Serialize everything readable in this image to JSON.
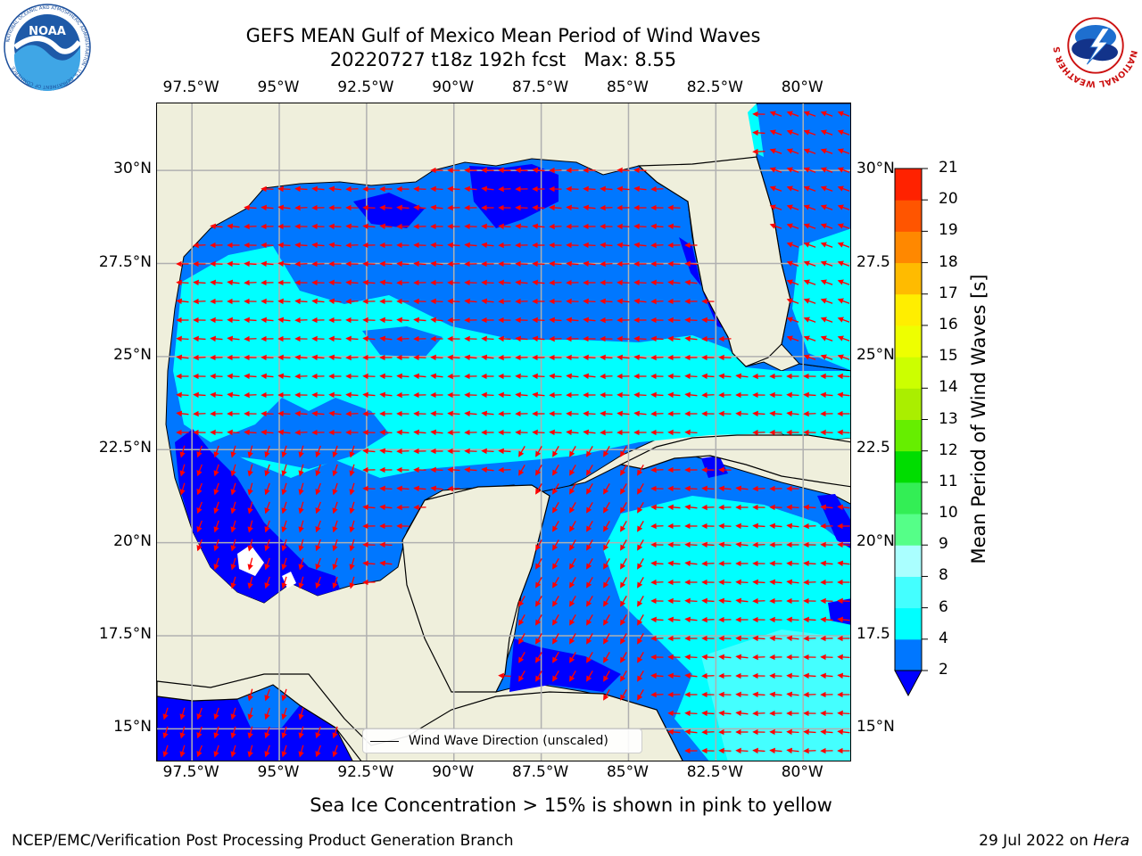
{
  "header": {
    "title_line1": "GEFS MEAN Gulf of Mexico Mean Period of Wind Waves",
    "title_line2": "20220727 t18z 192h fcst   Max: 8.55"
  },
  "logos": {
    "left": {
      "name": "noaa-logo",
      "text": "NOAA",
      "ring_text": "NATIONAL OCEANIC AND ATMOSPHERIC ADMINISTRATION  ·  U.S. DEPARTMENT OF COMMERCE"
    },
    "right": {
      "name": "nws-logo",
      "ring_text": "NATIONAL WEATHER SERVICE"
    }
  },
  "map": {
    "lon_range": [
      -98.5,
      -78.6
    ],
    "lat_range": [
      14.1,
      31.8
    ],
    "lon_ticks": [
      "97.5°W",
      "95°W",
      "92.5°W",
      "90°W",
      "87.5°W",
      "85°W",
      "82.5°W",
      "80°W"
    ],
    "lat_ticks_left": [
      "30°N",
      "27.5°N",
      "25°N",
      "22.5°N",
      "20°N",
      "17.5°N",
      "15°N"
    ],
    "lat_ticks_right": [
      "30°N",
      "27.5",
      "25°N",
      "22.5",
      "20°N",
      "17.5",
      "15°N"
    ],
    "grid": true,
    "land_color": "#efefdc",
    "vector_color": "#ff0000"
  },
  "legend": {
    "label": "Wind Wave Direction (unscaled)",
    "placement": "lower-center"
  },
  "colorbar": {
    "title": "Mean Period of Wind Waves [s]",
    "labels": [
      "2",
      "4",
      "6",
      "8",
      "9",
      "10",
      "11",
      "12",
      "13",
      "14",
      "15",
      "16",
      "17",
      "18",
      "19",
      "20",
      "21"
    ],
    "colors": [
      "#0077ff",
      "#00ffff",
      "#44ffff",
      "#aaffff",
      "#55ff88",
      "#33ee55",
      "#00dd00",
      "#66ee00",
      "#aaee00",
      "#ccff00",
      "#eeff00",
      "#ffee00",
      "#ffbb00",
      "#ff8800",
      "#ff5500",
      "#ff2200"
    ],
    "under_color": "#0000ff"
  },
  "footer": {
    "note": "Sea Ice Concentration > 15% is shown in pink to yellow",
    "left": "NCEP/EMC/Verification Post Processing Product Generation Branch",
    "right_prefix": "29 Jul 2022 on ",
    "right_host": "Hera"
  }
}
